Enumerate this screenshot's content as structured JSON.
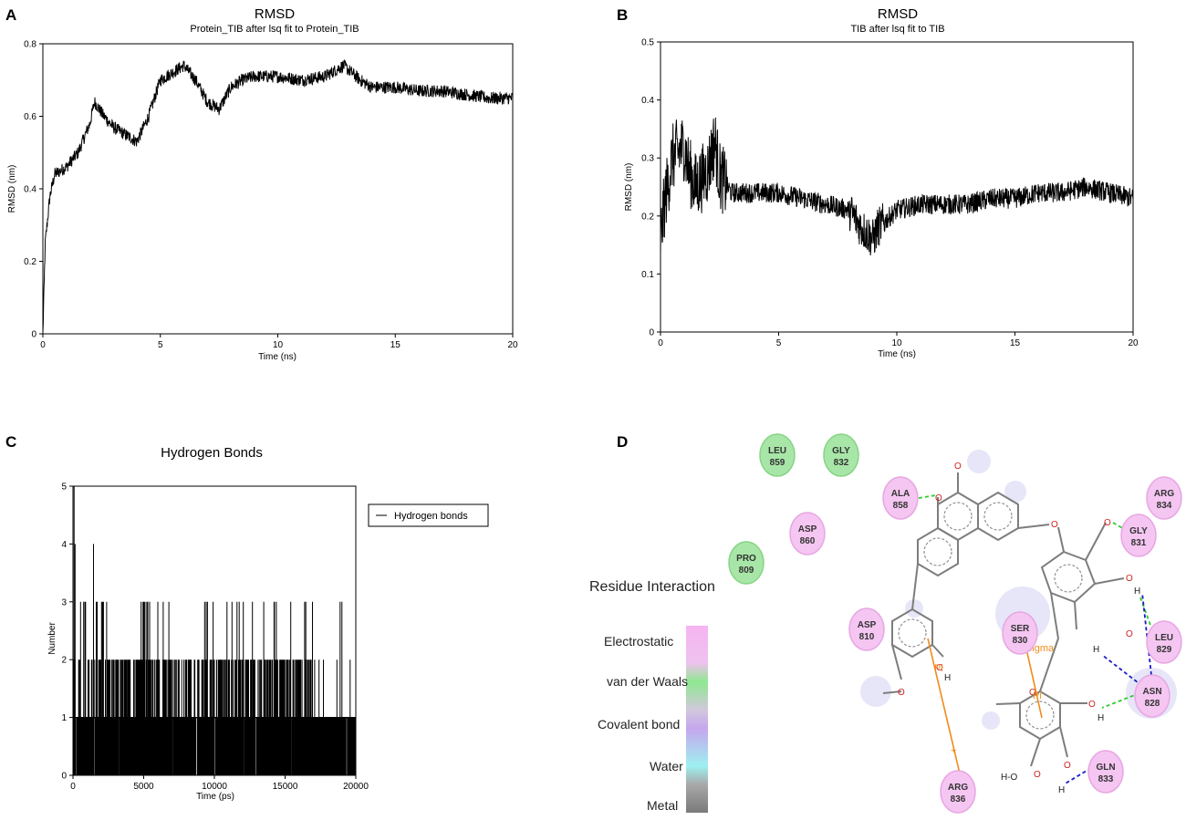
{
  "chart_data": [
    {
      "type": "line",
      "panel": "A",
      "title": "RMSD",
      "subtitle": "Protein_TIB after lsq fit to Protein_TIB",
      "xlabel": "Time (ns)",
      "ylabel": "RMSD (nm)",
      "xlim": [
        0,
        20
      ],
      "ylim": [
        0,
        0.8
      ],
      "xticks": [
        "0",
        "5",
        "10",
        "15",
        "20"
      ],
      "yticks": [
        "0",
        "0.2",
        "0.4",
        "0.6",
        "0.8"
      ],
      "series": [
        {
          "name": "RMSD",
          "x": [
            0,
            0.1,
            0.3,
            0.5,
            1.0,
            1.5,
            2.0,
            2.2,
            2.6,
            3.0,
            3.5,
            4.0,
            4.5,
            5.0,
            5.5,
            6.0,
            6.5,
            7.0,
            7.5,
            8.0,
            8.5,
            9.0,
            10.0,
            11.0,
            12.0,
            12.8,
            13.5,
            14.0,
            15.0,
            16.0,
            17.0,
            18.0,
            19.0,
            20.0
          ],
          "y": [
            0.0,
            0.25,
            0.38,
            0.44,
            0.46,
            0.5,
            0.58,
            0.64,
            0.6,
            0.57,
            0.55,
            0.53,
            0.6,
            0.7,
            0.72,
            0.74,
            0.7,
            0.64,
            0.62,
            0.68,
            0.7,
            0.71,
            0.71,
            0.7,
            0.71,
            0.74,
            0.7,
            0.68,
            0.68,
            0.67,
            0.67,
            0.66,
            0.65,
            0.65
          ]
        }
      ]
    },
    {
      "type": "line",
      "panel": "B",
      "title": "RMSD",
      "subtitle": "TIB after lsq fit to TIB",
      "xlabel": "Time (ns)",
      "ylabel": "RMSD (nm)",
      "xlim": [
        0,
        20
      ],
      "ylim": [
        0,
        0.5
      ],
      "xticks": [
        "0",
        "5",
        "10",
        "15",
        "20"
      ],
      "yticks": [
        "0",
        "0.1",
        "0.2",
        "0.3",
        "0.4",
        "0.5"
      ],
      "series": [
        {
          "name": "RMSD",
          "x": [
            0,
            0.2,
            0.5,
            1.0,
            1.2,
            1.5,
            2.0,
            2.3,
            2.5,
            3.0,
            4.0,
            5.0,
            6.0,
            7.0,
            8.0,
            8.5,
            9.0,
            9.2,
            10.0,
            11.0,
            12.0,
            13.0,
            14.0,
            15.0,
            16.0,
            17.0,
            18.0,
            19.0,
            20.0
          ],
          "y": [
            0.16,
            0.23,
            0.3,
            0.32,
            0.28,
            0.25,
            0.28,
            0.33,
            0.27,
            0.24,
            0.24,
            0.24,
            0.23,
            0.22,
            0.21,
            0.18,
            0.16,
            0.18,
            0.21,
            0.22,
            0.22,
            0.22,
            0.23,
            0.23,
            0.24,
            0.24,
            0.25,
            0.24,
            0.23
          ]
        }
      ]
    },
    {
      "type": "bar",
      "panel": "C",
      "title": "Hydrogen Bonds",
      "xlabel": "Time (ps)",
      "ylabel": "Number",
      "xlim": [
        0,
        20000
      ],
      "ylim": [
        0,
        5
      ],
      "xticks": [
        "0",
        "5000",
        "10000",
        "15000",
        "20000"
      ],
      "yticks": [
        "0",
        "1",
        "2",
        "3",
        "4",
        "5"
      ],
      "legend": "Hydrogen bonds",
      "series": [
        {
          "name": "Hydrogen bonds",
          "note": "per-frame integer counts; dense 0-1 band, frequent 2-3 spikes, sparse 4-5 near start",
          "spikes_4": [
            150,
            1450
          ],
          "spikes_5": [
            80
          ]
        }
      ]
    }
  ],
  "panel_labels": {
    "a": "A",
    "b": "B",
    "c": "C",
    "d": "D"
  },
  "interaction_diagram": {
    "legend_title": "Residue Interaction",
    "legend_items": [
      "Electrostatic",
      "van der Waals",
      "Covalent bond",
      "Water",
      "Metal"
    ],
    "legend_colors": [
      "#f2a8ee",
      "#8ee58e",
      "#c8a8ee",
      "#9ee8ee",
      "#7a7a7a"
    ],
    "residues": [
      {
        "name": "LEU",
        "num": "859",
        "kind": "vdw"
      },
      {
        "name": "GLY",
        "num": "832",
        "kind": "vdw"
      },
      {
        "name": "ALA",
        "num": "858",
        "kind": "elec"
      },
      {
        "name": "ASP",
        "num": "860",
        "kind": "elec"
      },
      {
        "name": "PRO",
        "num": "809",
        "kind": "vdw"
      },
      {
        "name": "ARG",
        "num": "834",
        "kind": "elec"
      },
      {
        "name": "GLY",
        "num": "831",
        "kind": "elec"
      },
      {
        "name": "ASP",
        "num": "810",
        "kind": "elec"
      },
      {
        "name": "SER",
        "num": "830",
        "kind": "elec"
      },
      {
        "name": "LEU",
        "num": "829",
        "kind": "elec"
      },
      {
        "name": "ASN",
        "num": "828",
        "kind": "elec"
      },
      {
        "name": "GLN",
        "num": "833",
        "kind": "elec"
      },
      {
        "name": "ARG",
        "num": "836",
        "kind": "elec"
      }
    ],
    "atom_labels": {
      "O": "O",
      "H": "H",
      "HO": "H-O"
    },
    "interaction_labels": {
      "pi": "Pi",
      "sigma": "Sigma",
      "plus": "+"
    }
  }
}
